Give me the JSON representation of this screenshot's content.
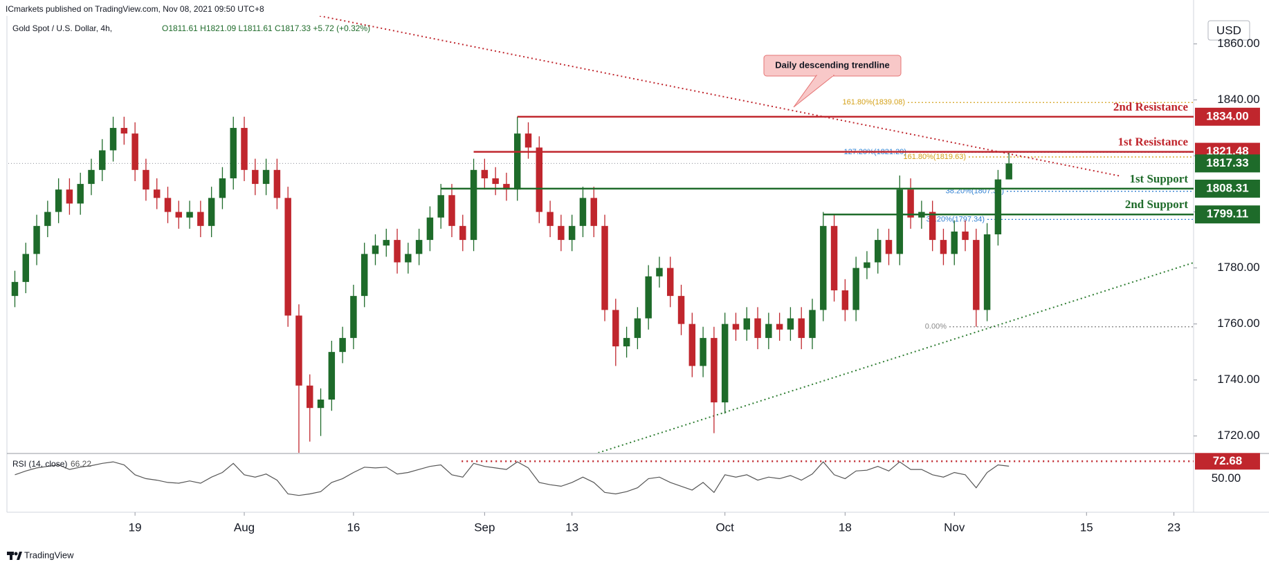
{
  "header": {
    "publisher": "ICmarkets published on TradingView.com, Nov 08, 2021 09:50 UTC+8",
    "footer": "TradingView"
  },
  "chart_data": {
    "type": "candlestick",
    "title": "Gold Spot / U.S. Dollar, 4h,",
    "ohlc": "O1811.61 H1821.09 L1811.61 C1817.33 +5.72 (+0.32%)",
    "currency": "USD",
    "x": [
      -11,
      -10,
      -9,
      -8,
      -7,
      -6,
      -5,
      -4,
      -3,
      -2,
      -1,
      0,
      1,
      2,
      3,
      4,
      5,
      6,
      7,
      8,
      9,
      10,
      11,
      12,
      13,
      14,
      15,
      16,
      17,
      18,
      19,
      20,
      21,
      22,
      23,
      24,
      25,
      26,
      27,
      28,
      29,
      30,
      31,
      32,
      33,
      34,
      35,
      36,
      37,
      38,
      39,
      40,
      41,
      42,
      43,
      44,
      45,
      46,
      47,
      48,
      49,
      50,
      51,
      52,
      53,
      54,
      55,
      56,
      57,
      58,
      59,
      60,
      61,
      62,
      63,
      64,
      65,
      66,
      67,
      68,
      69,
      70,
      71,
      72,
      73,
      74,
      75,
      76,
      77,
      78,
      79,
      80
    ],
    "open": [
      1770,
      1775,
      1785,
      1795,
      1800,
      1808,
      1803,
      1810,
      1815,
      1822,
      1830,
      1828,
      1815,
      1808,
      1805,
      1800,
      1798,
      1800,
      1795,
      1805,
      1812,
      1830,
      1815,
      1810,
      1815,
      1805,
      1763,
      1738,
      1730,
      1733,
      1750,
      1755,
      1770,
      1785,
      1788,
      1790,
      1782,
      1785,
      1790,
      1798,
      1806,
      1795,
      1790,
      1815,
      1812,
      1810,
      1808,
      1828,
      1823,
      1800,
      1795,
      1790,
      1795,
      1805,
      1795,
      1765,
      1752,
      1755,
      1762,
      1777,
      1780,
      1770,
      1760,
      1745,
      1755,
      1732,
      1760,
      1758,
      1762,
      1755,
      1760,
      1758,
      1762,
      1755,
      1765,
      1795,
      1772,
      1765,
      1780,
      1782,
      1790,
      1785,
      1808,
      1798,
      1800,
      1790,
      1785,
      1793,
      1790,
      1765,
      1792,
      1811.61
    ],
    "high": [
      1779,
      1789,
      1799,
      1804,
      1812,
      1812,
      1814,
      1819,
      1826,
      1834,
      1834,
      1832,
      1819,
      1812,
      1809,
      1804,
      1804,
      1804,
      1809,
      1816,
      1834,
      1834,
      1819,
      1819,
      1819,
      1809,
      1767,
      1742,
      1737,
      1754,
      1759,
      1774,
      1789,
      1792,
      1794,
      1794,
      1789,
      1794,
      1802,
      1810,
      1810,
      1799,
      1819,
      1819,
      1816,
      1814,
      1834,
      1832,
      1827,
      1804,
      1799,
      1799,
      1809,
      1809,
      1799,
      1769,
      1759,
      1766,
      1781,
      1784,
      1784,
      1774,
      1764,
      1759,
      1759,
      1764,
      1764,
      1766,
      1766,
      1764,
      1764,
      1766,
      1766,
      1769,
      1800,
      1799,
      1776,
      1784,
      1786,
      1794,
      1794,
      1813,
      1812,
      1804,
      1804,
      1794,
      1797,
      1797,
      1794,
      1796,
      1815,
      1821.09
    ],
    "low": [
      1766,
      1771,
      1781,
      1791,
      1796,
      1799,
      1799,
      1806,
      1811,
      1818,
      1824,
      1811,
      1804,
      1801,
      1796,
      1794,
      1794,
      1791,
      1791,
      1801,
      1808,
      1811,
      1806,
      1806,
      1801,
      1759,
      1690,
      1718,
      1720,
      1729,
      1746,
      1751,
      1766,
      1781,
      1784,
      1778,
      1778,
      1781,
      1786,
      1794,
      1791,
      1786,
      1786,
      1808,
      1806,
      1804,
      1804,
      1819,
      1796,
      1791,
      1786,
      1786,
      1791,
      1791,
      1761,
      1745,
      1748,
      1751,
      1758,
      1773,
      1766,
      1756,
      1741,
      1741,
      1721,
      1728,
      1754,
      1754,
      1751,
      1751,
      1754,
      1754,
      1751,
      1751,
      1761,
      1768,
      1761,
      1761,
      1776,
      1778,
      1781,
      1781,
      1794,
      1794,
      1786,
      1781,
      1781,
      1786,
      1759,
      1761,
      1788,
      1811.61
    ],
    "close": [
      1775,
      1785,
      1795,
      1800,
      1808,
      1803,
      1810,
      1815,
      1822,
      1830,
      1828,
      1815,
      1808,
      1805,
      1800,
      1798,
      1800,
      1795,
      1805,
      1812,
      1830,
      1815,
      1810,
      1815,
      1805,
      1763,
      1738,
      1730,
      1733,
      1750,
      1755,
      1770,
      1785,
      1788,
      1790,
      1782,
      1785,
      1790,
      1798,
      1806,
      1795,
      1790,
      1815,
      1812,
      1810,
      1808,
      1828,
      1823,
      1800,
      1795,
      1790,
      1795,
      1805,
      1795,
      1765,
      1752,
      1755,
      1762,
      1777,
      1780,
      1770,
      1760,
      1745,
      1755,
      1732,
      1760,
      1758,
      1762,
      1755,
      1760,
      1758,
      1762,
      1755,
      1765,
      1795,
      1772,
      1765,
      1780,
      1782,
      1790,
      1785,
      1808,
      1798,
      1800,
      1790,
      1785,
      1793,
      1790,
      1765,
      1792,
      1811.61,
      1817.33
    ],
    "up_color": "#1e6b2a",
    "down_color": "#c0262d",
    "xlim": [
      -11.6,
      96.9
    ],
    "xticks": [
      {
        "value": 0,
        "label": "19"
      },
      {
        "value": 10,
        "label": "Aug"
      },
      {
        "value": 20,
        "label": "16"
      },
      {
        "value": 32,
        "label": "Sep"
      },
      {
        "value": 40,
        "label": "13"
      },
      {
        "value": 54,
        "label": "Oct"
      },
      {
        "value": 65,
        "label": "18"
      },
      {
        "value": 75,
        "label": "Nov"
      },
      {
        "value": 87.1,
        "label": "15"
      },
      {
        "value": 95.1,
        "label": "23"
      }
    ],
    "ylim": [
      1714,
      1870
    ],
    "yticks": [
      {
        "value": 1720,
        "label": "1720.00"
      },
      {
        "value": 1740,
        "label": "1740.00"
      },
      {
        "value": 1760,
        "label": "1760.00"
      },
      {
        "value": 1780,
        "label": "1780.00"
      },
      {
        "value": 1800,
        "label": "1800.00"
      },
      {
        "value": 1820,
        "label": "1820.00"
      },
      {
        "value": 1840,
        "label": "1840.00"
      },
      {
        "value": 1860,
        "label": "1860.00"
      }
    ],
    "levels": [
      {
        "name": "2nd Resistance",
        "value": 1834,
        "label": "1834.00",
        "x_start": 35,
        "color": "#c0262d"
      },
      {
        "name": "1st Resistance",
        "value": 1821.48,
        "label": "1821.48",
        "x_start": 31,
        "color": "#c0262d"
      },
      {
        "name": "1st Support",
        "value": 1808.31,
        "label": "1808.31",
        "x_start": 28,
        "color": "#1e6b2a"
      },
      {
        "name": "2nd Support",
        "value": 1799.11,
        "label": "1799.11",
        "x_start": 63,
        "color": "#1e6b2a"
      }
    ],
    "fibonacci": [
      {
        "label": "161.80%(1839.08)",
        "value": 1839.08,
        "color": "#d4a017"
      },
      {
        "label": "127.20%(1821.29)",
        "value": 1821.29,
        "color": "#2f7fd0"
      },
      {
        "label": "161.80%(1819.63)",
        "value": 1819.63,
        "color": "#d4a017"
      },
      {
        "label": "38.20%(1807.38)",
        "value": 1807.38,
        "color": "#2f7fd0"
      },
      {
        "label": "38.20%(1797.34)",
        "value": 1797.34,
        "color": "#2f7fd0"
      },
      {
        "label": "0.00%",
        "value": 1759,
        "color": "#888888"
      }
    ],
    "trendlines": [
      {
        "label": "Daily descending trendline",
        "x": [
          16.9,
          90.2
        ],
        "values": [
          1870,
          1812.8
        ],
        "color": "#c0262d"
      },
      {
        "x": [
          42.4,
          96.9
        ],
        "values": [
          1714,
          1781.9
        ],
        "color": "#2e7d32"
      }
    ],
    "rsi": {
      "title": "RSI (14, close)",
      "color": "#555555",
      "values": [
        55,
        60,
        64,
        66,
        68,
        62,
        65,
        67,
        70,
        72,
        68,
        55,
        50,
        48,
        45,
        44,
        47,
        44,
        52,
        58,
        70,
        55,
        52,
        56,
        48,
        30,
        28,
        30,
        33,
        45,
        50,
        58,
        65,
        64,
        65,
        56,
        58,
        62,
        66,
        68,
        55,
        52,
        70,
        66,
        64,
        62,
        72,
        64,
        45,
        42,
        40,
        45,
        52,
        45,
        32,
        30,
        33,
        38,
        50,
        52,
        45,
        40,
        35,
        45,
        32,
        55,
        52,
        55,
        48,
        52,
        50,
        54,
        48,
        56,
        72,
        55,
        50,
        60,
        61,
        66,
        60,
        72,
        62,
        62,
        55,
        52,
        58,
        55,
        38,
        58,
        68,
        66.22
      ],
      "ylim": [
        6,
        82
      ],
      "yticks": [
        {
          "value": 50,
          "label": "50.00"
        }
      ],
      "level": {
        "value": 72.68,
        "label": "72.68",
        "x_start": 29.9,
        "color": "#c0262d"
      }
    }
  }
}
